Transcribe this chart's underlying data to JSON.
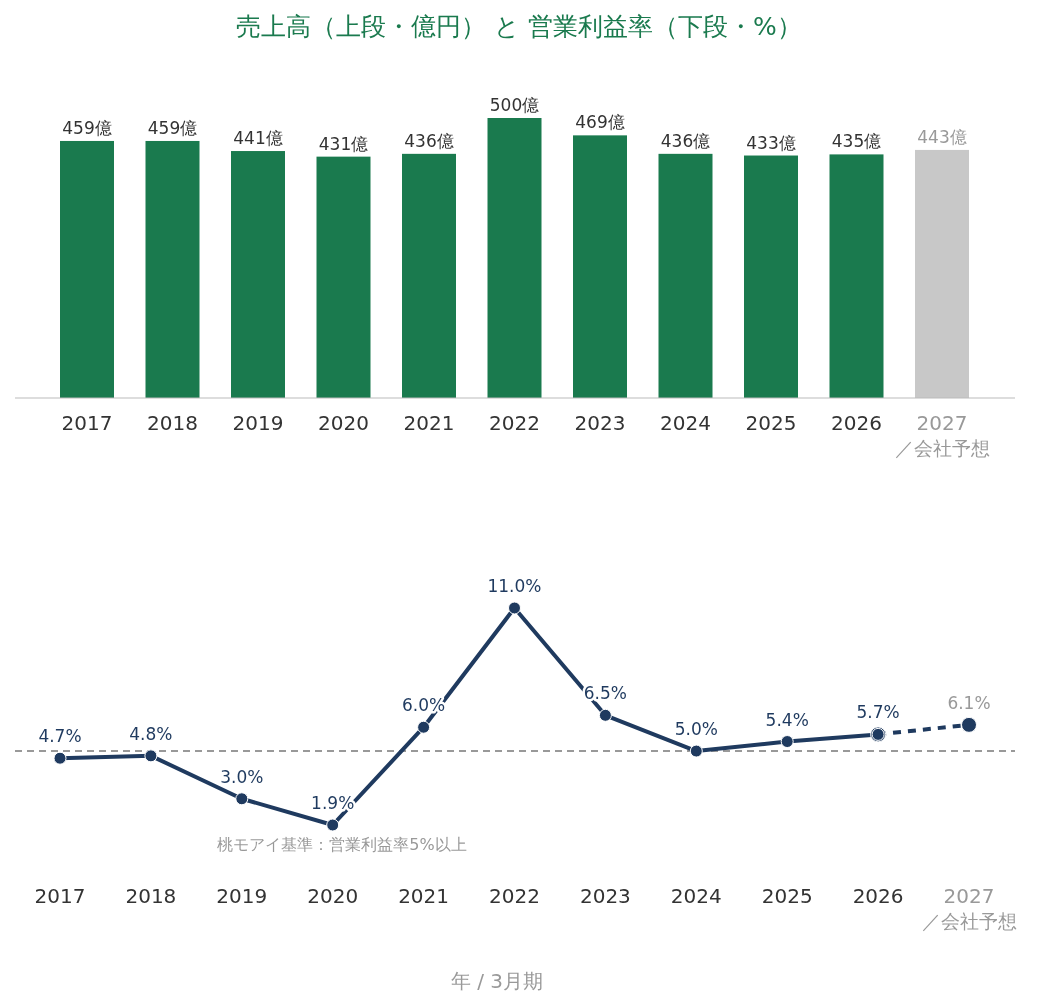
{
  "chart_data": [
    {
      "type": "bar",
      "title": "売上高（上段・億円） と 営業利益率（下段・%）",
      "categories": [
        "2017",
        "2018",
        "2019",
        "2020",
        "2021",
        "2022",
        "2023",
        "2024",
        "2025",
        "2026",
        "2027"
      ],
      "values": [
        459,
        459,
        441,
        431,
        436,
        500,
        469,
        436,
        433,
        435,
        443
      ],
      "value_labels": [
        "459億",
        "459億",
        "441億",
        "431億",
        "436億",
        "500億",
        "469億",
        "436億",
        "433億",
        "435億",
        "443億"
      ],
      "colors": [
        "#1a7a4e",
        "#1a7a4e",
        "#1a7a4e",
        "#1a7a4e",
        "#1a7a4e",
        "#1a7a4e",
        "#1a7a4e",
        "#1a7a4e",
        "#1a7a4e",
        "#1a7a4e",
        "#c8c8c8"
      ],
      "annotations": [
        "／会社予想"
      ]
    },
    {
      "type": "line",
      "xlabel": "年 / 3月期",
      "marker": "circle",
      "categories": [
        "2017",
        "2018",
        "2019",
        "2020",
        "2021",
        "2022",
        "2023",
        "2024",
        "2025",
        "2026",
        "2027"
      ],
      "series": [
        {
          "color": "#1f3a5f",
          "line_style": "solid",
          "values": [
            4.7,
            4.8,
            3.0,
            1.9,
            6.0,
            11.0,
            6.5,
            5.0,
            5.4,
            5.7,
            null
          ],
          "value_labels": [
            "4.7%",
            "4.8%",
            "3.0%",
            "1.9%",
            "6.0%",
            "11.0%",
            "6.5%",
            "5.0%",
            "5.4%",
            "5.7%",
            null
          ]
        },
        {
          "color": "#1f3a5f",
          "line_style": "dashed",
          "values": [
            null,
            null,
            null,
            null,
            null,
            null,
            null,
            null,
            null,
            5.7,
            6.1
          ],
          "value_labels": [
            null,
            null,
            null,
            null,
            null,
            null,
            null,
            null,
            null,
            null,
            "6.1%"
          ]
        }
      ],
      "ref_lines": [
        {
          "axis": "y",
          "value": 5,
          "label": "桃モアイ基準：営業利益率5%以上",
          "color": "#999999",
          "line_style": "dashed"
        }
      ],
      "annotations": [
        "／会社予想"
      ]
    }
  ]
}
